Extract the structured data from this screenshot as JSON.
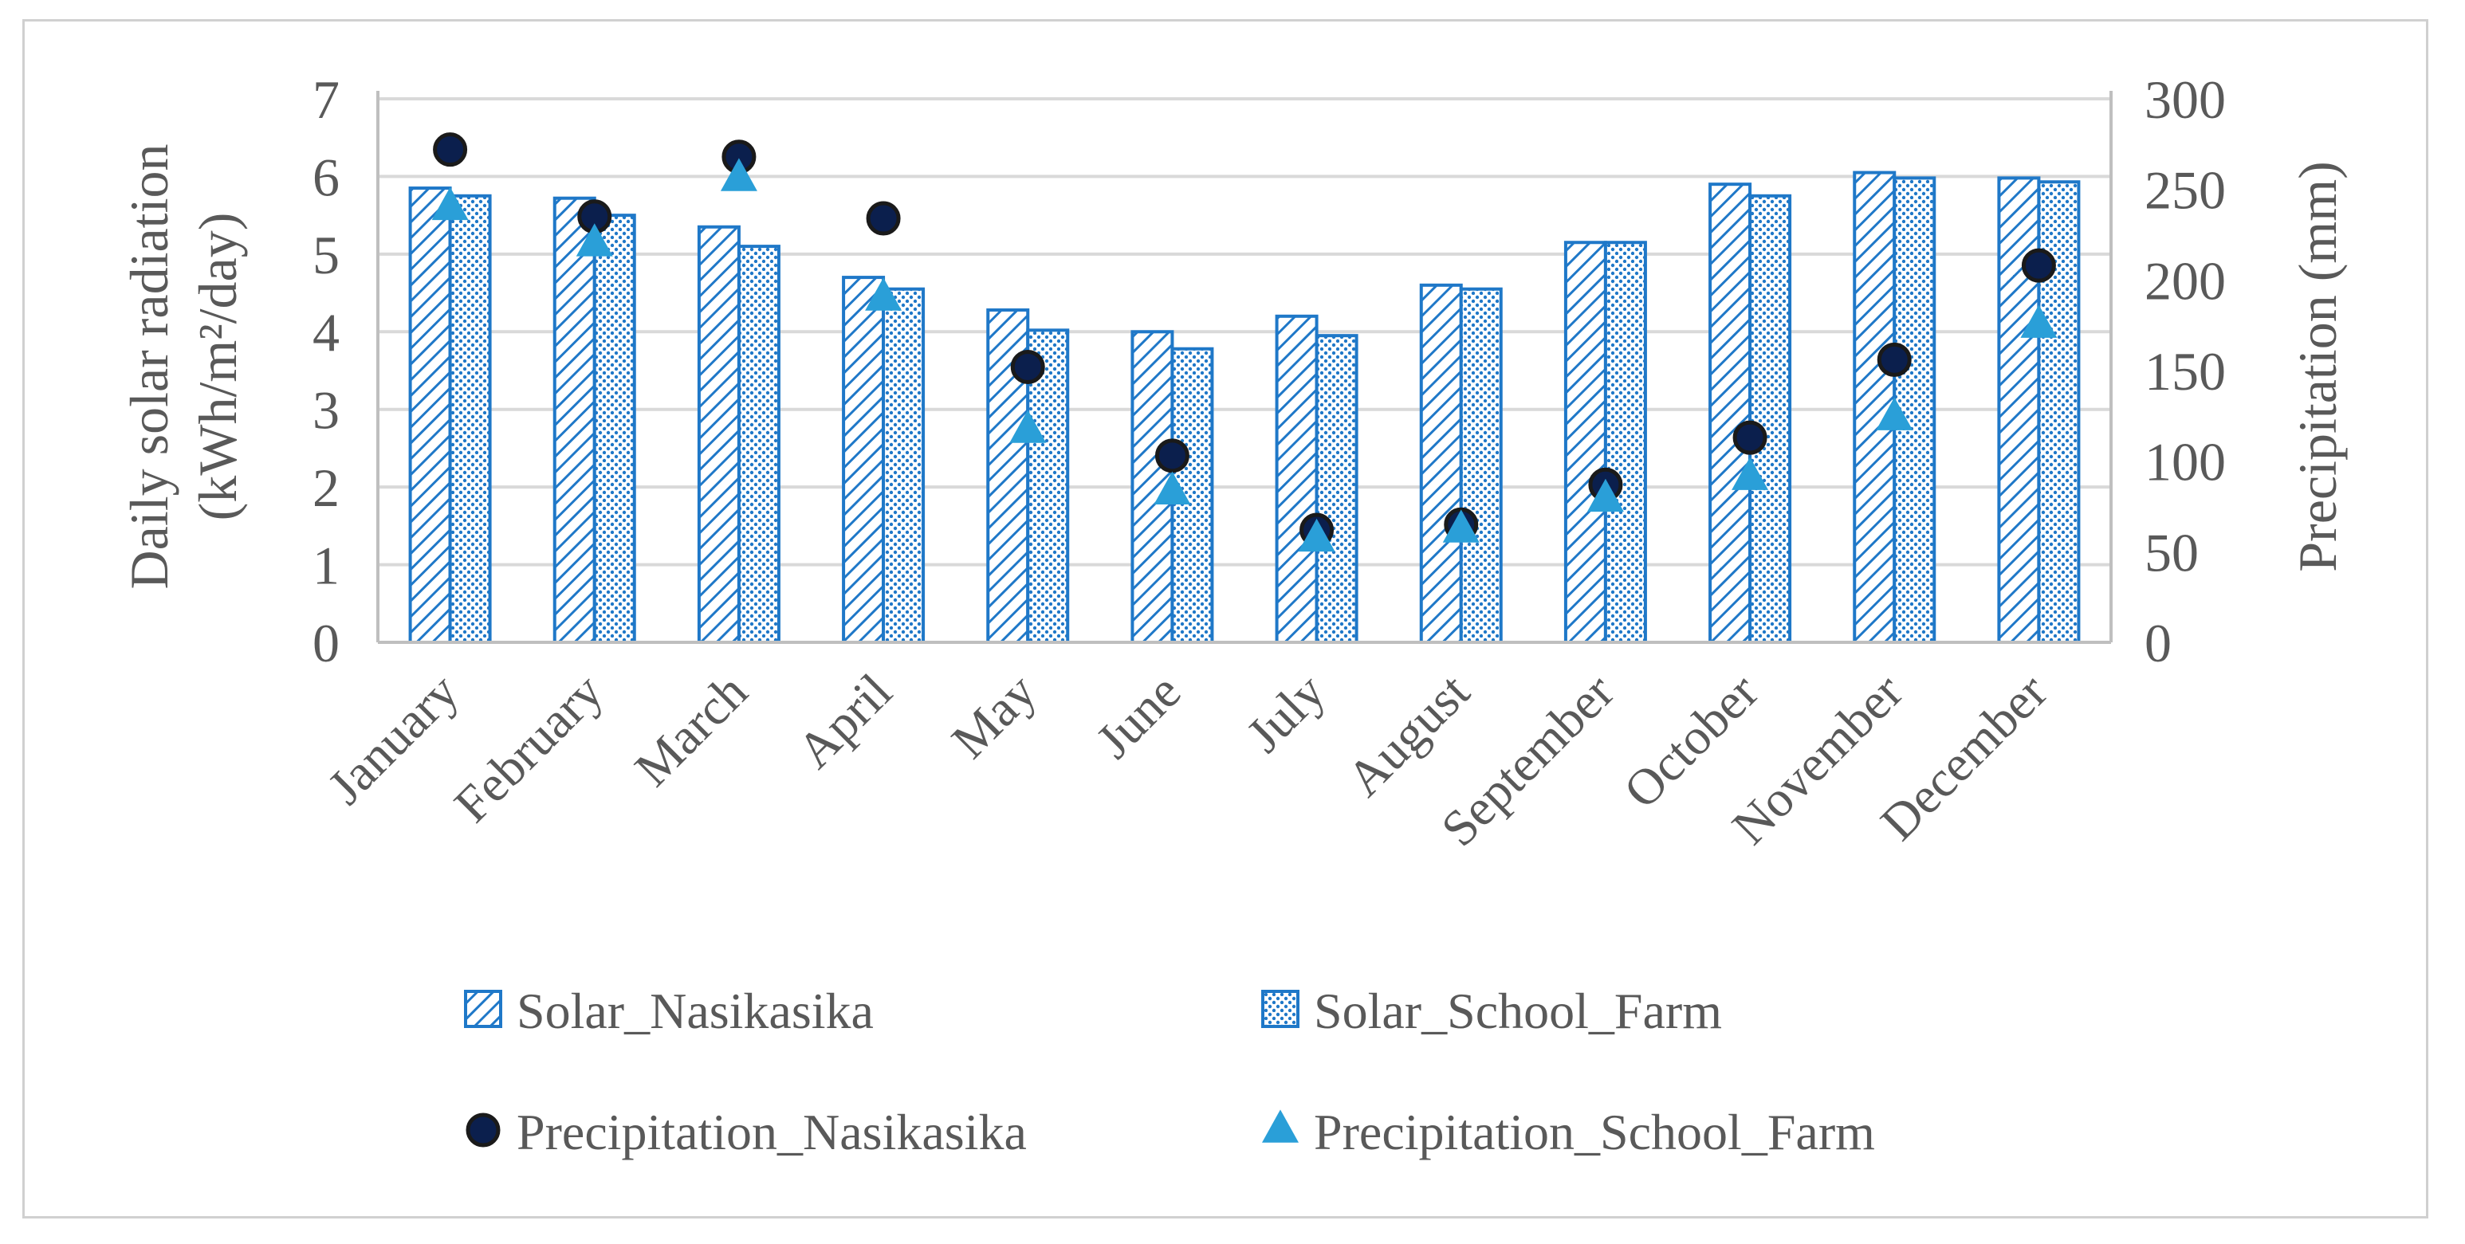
{
  "chart_data": {
    "type": "bar",
    "categories": [
      "January",
      "February",
      "March",
      "April",
      "May",
      "June",
      "July",
      "August",
      "September",
      "October",
      "November",
      "December"
    ],
    "series": [
      {
        "name": "Solar_Nasikasika",
        "kind": "bar",
        "axis": "left",
        "pattern": "diagonal-hatch",
        "values": [
          5.85,
          5.72,
          5.35,
          4.7,
          4.28,
          4.0,
          4.2,
          4.6,
          5.15,
          5.9,
          6.05,
          5.98
        ]
      },
      {
        "name": "Solar_School_Farm",
        "kind": "bar",
        "axis": "left",
        "pattern": "dotted",
        "values": [
          5.75,
          5.5,
          5.1,
          4.55,
          4.02,
          3.78,
          3.95,
          4.55,
          5.15,
          5.75,
          5.98,
          5.93
        ]
      },
      {
        "name": "Precipitation_Nasikasika",
        "kind": "scatter",
        "axis": "right",
        "marker": "circle",
        "values": [
          272,
          235,
          268,
          234,
          152,
          103,
          62,
          65,
          87,
          113,
          156,
          208
        ]
      },
      {
        "name": "Precipitation_School_Farm",
        "kind": "scatter",
        "axis": "right",
        "marker": "triangle",
        "values": [
          240,
          220,
          256,
          190,
          117,
          83,
          57,
          62,
          79,
          91,
          124,
          175
        ]
      }
    ],
    "ylabel_left": [
      "Daily solar radiation",
      "(kWh/m²/day)"
    ],
    "ylabel_right": "Precipitation (mm)",
    "ylim_left": [
      0,
      7
    ],
    "ylim_right": [
      0,
      300
    ],
    "yticks_left": [
      "0",
      "1",
      "2",
      "3",
      "4",
      "5",
      "6",
      "7"
    ],
    "yticks_right": [
      "0",
      "50",
      "100",
      "150",
      "200",
      "250",
      "300"
    ],
    "grid": true,
    "legend_position": "bottom",
    "colors": {
      "bar": "#1f78c8",
      "circle_fill": "#0b1f4d",
      "circle_stroke": "#1a1a1a",
      "triangle": "#2a9fd8",
      "grid": "#d9d9d9",
      "axis": "#bfbfbf",
      "text": "#595959"
    }
  }
}
